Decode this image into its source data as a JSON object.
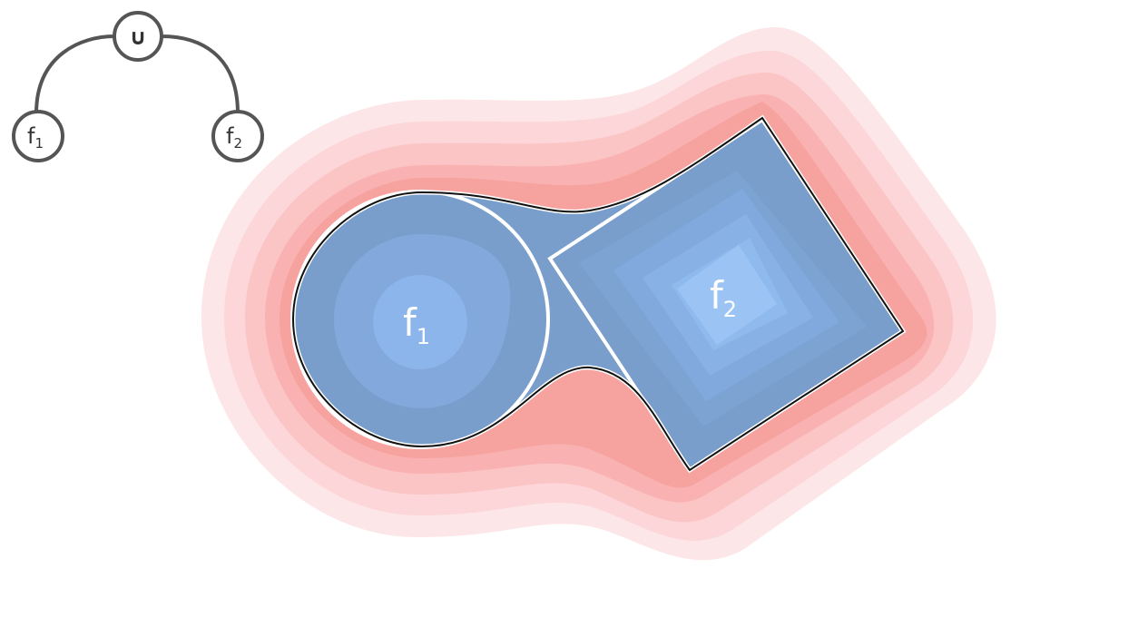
{
  "tree": {
    "root": {
      "symbol": "∪"
    },
    "left_leaf": {
      "base": "f",
      "subscript": "1"
    },
    "right_leaf": {
      "base": "f",
      "subscript": "2"
    }
  },
  "shapes": {
    "circle_label": {
      "base": "f",
      "subscript": "1"
    },
    "square_label": {
      "base": "f",
      "subscript": "2"
    }
  },
  "colors": {
    "outside_field": [
      "#fde6e7",
      "#fcd6d8",
      "#fbc5c6",
      "#f9b2b1",
      "#f6a3a0"
    ],
    "inside_field": [
      "#7a9ecb",
      "#82a8dc",
      "#8cb5ec",
      "#9bc4f5"
    ],
    "boundary": "#111111",
    "boundary_highlight": "#ffffff",
    "tree_stroke": "#555555"
  }
}
